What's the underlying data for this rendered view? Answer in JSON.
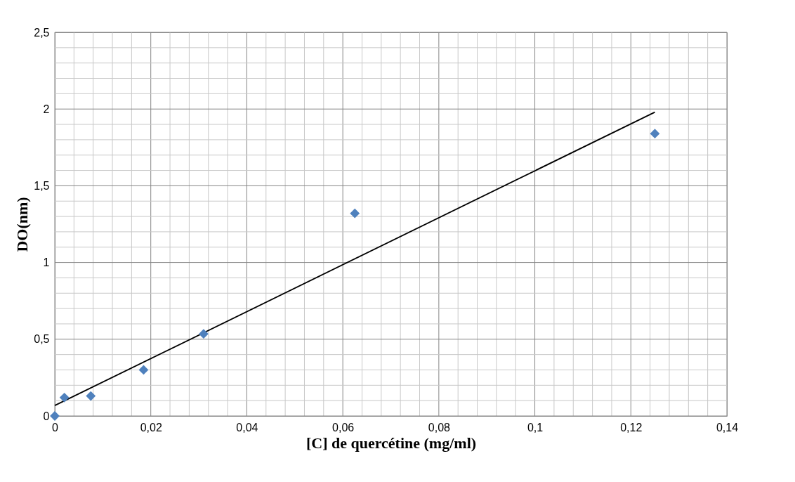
{
  "chart_data": {
    "type": "scatter",
    "xlabel": "[C] de quercétine (mg/ml)",
    "ylabel": "DO(nm)",
    "xlim": [
      0,
      0.14
    ],
    "ylim": [
      0,
      2.5
    ],
    "xticks": [
      0,
      {
        "value": 0.004,
        "label": null
      },
      {
        "value": 0.008,
        "label": null
      },
      {
        "value": 0.012,
        "label": null
      },
      {
        "value": 0.016,
        "label": null
      },
      {
        "value": 0.02,
        "label": "0,02"
      },
      {
        "value": 0.024,
        "label": null
      },
      {
        "value": 0.028,
        "label": null
      },
      {
        "value": 0.032,
        "label": null
      },
      {
        "value": 0.036,
        "label": null
      },
      {
        "value": 0.04,
        "label": "0,04"
      },
      {
        "value": 0.044,
        "label": null
      },
      {
        "value": 0.048,
        "label": null
      },
      {
        "value": 0.052,
        "label": null
      },
      {
        "value": 0.056,
        "label": null
      },
      {
        "value": 0.06,
        "label": "0,06"
      },
      {
        "value": 0.064,
        "label": null
      },
      {
        "value": 0.068,
        "label": null
      },
      {
        "value": 0.072,
        "label": null
      },
      {
        "value": 0.076,
        "label": null
      },
      {
        "value": 0.08,
        "label": "0,08"
      },
      {
        "value": 0.084,
        "label": null
      },
      {
        "value": 0.088,
        "label": null
      },
      {
        "value": 0.092,
        "label": null
      },
      {
        "value": 0.096,
        "label": null
      },
      {
        "value": 0.1,
        "label": "0,1"
      },
      {
        "value": 0.104,
        "label": null
      },
      {
        "value": 0.108,
        "label": null
      },
      {
        "value": 0.112,
        "label": null
      },
      {
        "value": 0.116,
        "label": null
      },
      {
        "value": 0.12,
        "label": "0,12"
      },
      {
        "value": 0.124,
        "label": null
      },
      {
        "value": 0.128,
        "label": null
      },
      {
        "value": 0.132,
        "label": null
      },
      {
        "value": 0.136,
        "label": null
      },
      {
        "value": 0.14,
        "label": "0,14"
      }
    ],
    "yticks": [
      0,
      {
        "value": 0.1,
        "label": null
      },
      {
        "value": 0.2,
        "label": null
      },
      {
        "value": 0.3,
        "label": null
      },
      {
        "value": 0.4,
        "label": null
      },
      {
        "value": 0.5,
        "label": "0,5"
      },
      {
        "value": 0.6,
        "label": null
      },
      {
        "value": 0.7,
        "label": null
      },
      {
        "value": 0.8,
        "label": null
      },
      {
        "value": 0.9,
        "label": null
      },
      1,
      {
        "value": 1.1,
        "label": null
      },
      {
        "value": 1.2,
        "label": null
      },
      {
        "value": 1.3,
        "label": null
      },
      {
        "value": 1.4,
        "label": null
      },
      {
        "value": 1.5,
        "label": "1,5"
      },
      {
        "value": 1.6,
        "label": null
      },
      {
        "value": 1.7,
        "label": null
      },
      {
        "value": 1.8,
        "label": null
      },
      {
        "value": 1.9,
        "label": null
      },
      2,
      {
        "value": 2.1,
        "label": null
      },
      {
        "value": 2.2,
        "label": null
      },
      {
        "value": 2.3,
        "label": null
      },
      {
        "value": 2.4,
        "label": null
      },
      {
        "value": 2.5,
        "label": "2,5"
      }
    ],
    "grid": true,
    "marker": "diamond",
    "series": [
      {
        "color": "#4f81bd",
        "x": [
          0,
          0.002,
          0.0075,
          0.0185,
          0.031,
          0.0625,
          0.125
        ],
        "values": [
          0,
          0.12,
          0.13,
          0.3,
          0.535,
          1.32,
          1.84
        ]
      },
      {
        "type": "line",
        "color": "#000000",
        "x": [
          0,
          0.125
        ],
        "values": [
          0.068,
          1.98
        ],
        "line_style": "solid",
        "marker": "none"
      }
    ]
  }
}
